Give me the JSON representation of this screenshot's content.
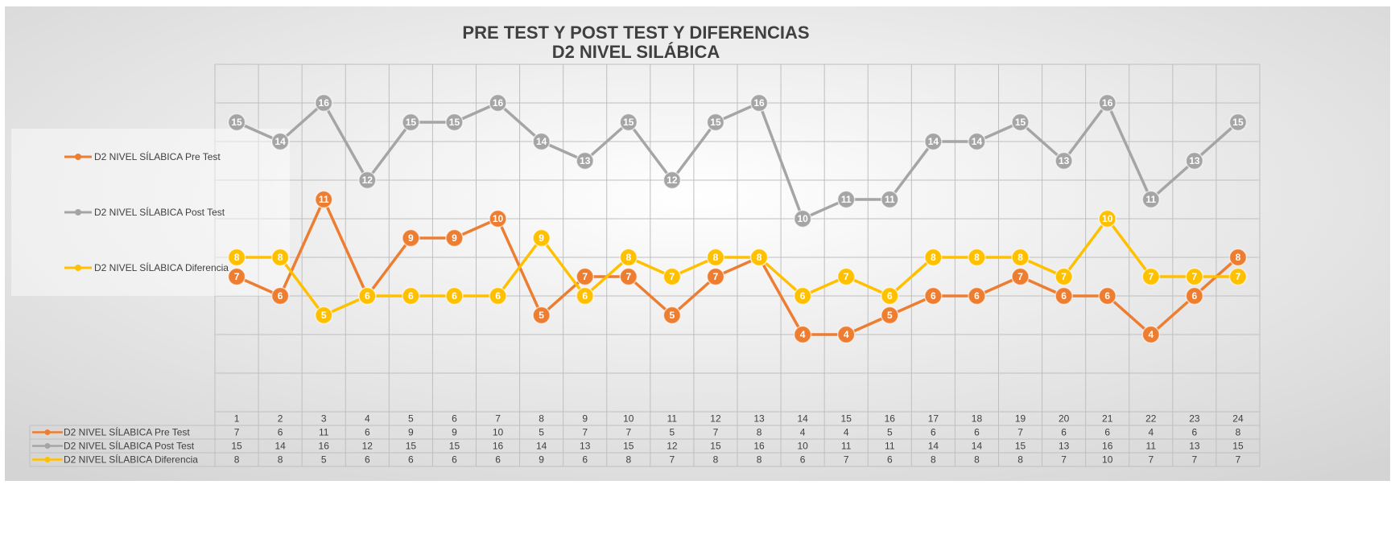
{
  "chart_data": {
    "type": "line",
    "title": "PRE TEST Y POST TEST Y DIFERENCIAS",
    "subtitle": "D2 NIVEL  SILÁBICA",
    "categories": [
      "1",
      "2",
      "3",
      "4",
      "5",
      "6",
      "7",
      "8",
      "9",
      "10",
      "11",
      "12",
      "13",
      "14",
      "15",
      "16",
      "17",
      "18",
      "19",
      "20",
      "21",
      "22",
      "23",
      "24"
    ],
    "series": [
      {
        "name": "D2 NIVEL  SÍLABICA Pre Test",
        "color": "#ed7d31",
        "values": [
          7,
          6,
          11,
          6,
          9,
          9,
          10,
          5,
          7,
          7,
          5,
          7,
          8,
          4,
          4,
          5,
          6,
          6,
          7,
          6,
          6,
          4,
          6,
          8
        ]
      },
      {
        "name": "D2 NIVEL  SÍLABICA Post Test",
        "color": "#a5a5a5",
        "values": [
          15,
          14,
          16,
          12,
          15,
          15,
          16,
          14,
          13,
          15,
          12,
          15,
          16,
          10,
          11,
          11,
          14,
          14,
          15,
          13,
          16,
          11,
          13,
          15
        ]
      },
      {
        "name": "D2 NIVEL  SÍLABICA Diferencia",
        "color": "#ffc000",
        "values": [
          8,
          8,
          5,
          6,
          6,
          6,
          6,
          9,
          6,
          8,
          7,
          8,
          8,
          6,
          7,
          6,
          8,
          8,
          8,
          7,
          10,
          7,
          7,
          7
        ]
      }
    ],
    "ylim": [
      0,
      18
    ],
    "yticks": [
      0,
      2,
      4,
      6,
      8,
      10,
      12,
      14,
      16,
      18
    ],
    "grid": true
  }
}
